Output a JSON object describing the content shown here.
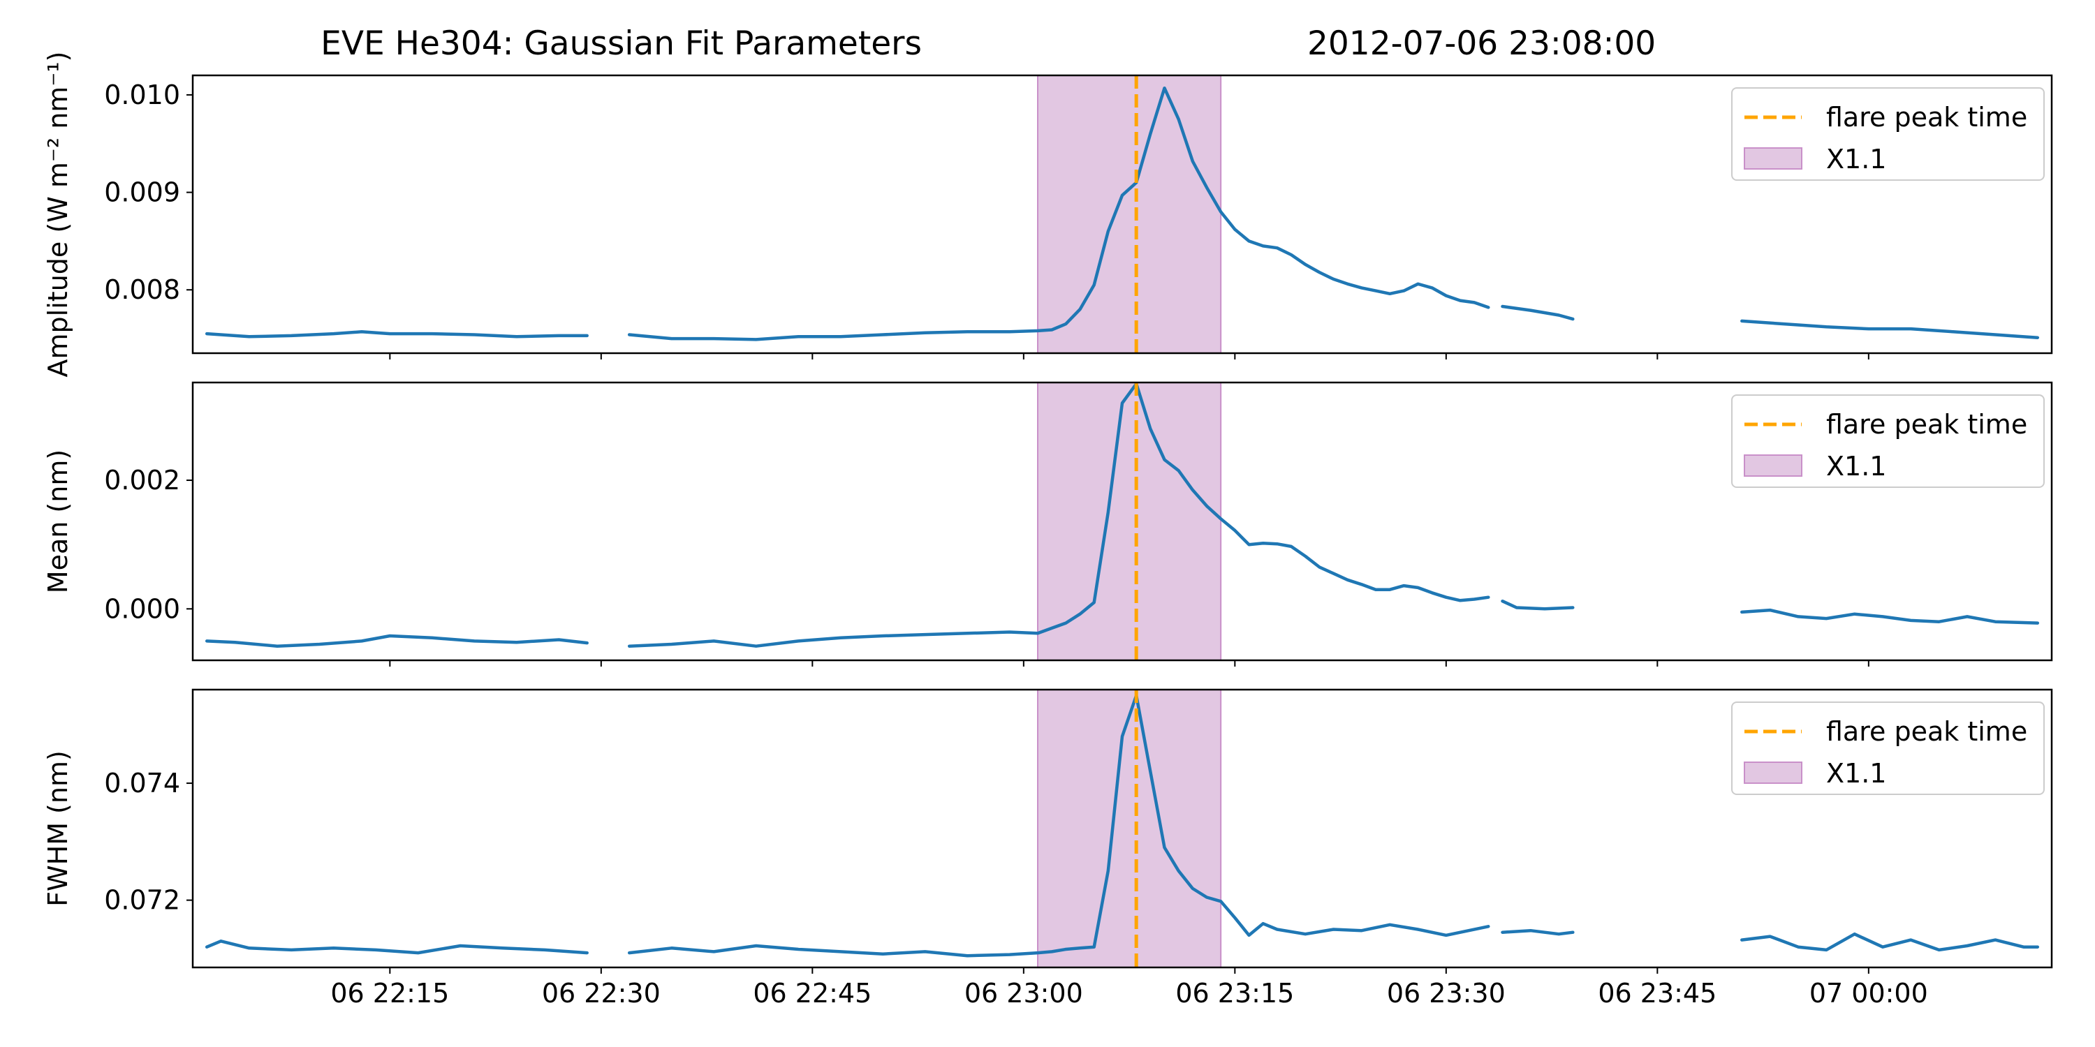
{
  "title": {
    "left": "EVE He304: Gaussian Fit Parameters",
    "right": "2012-07-06 23:08:00"
  },
  "colors": {
    "series": "#1f77b4",
    "flare_line": "#ffa500",
    "flare_span": "#e2c7e2",
    "flare_span_edge": "#c990c9",
    "axes": "#000000",
    "legend_border": "#cccccc"
  },
  "legend": {
    "peak_label": "flare peak time",
    "span_label": "X1.1",
    "placement": "top-right"
  },
  "x_ticks": [
    "06 22:15",
    "06 22:30",
    "06 22:45",
    "06 23:00",
    "06 23:15",
    "06 23:30",
    "06 23:45",
    "07 00:00"
  ],
  "chart_data": [
    {
      "type": "line",
      "ylabel": "Amplitude (W m⁻² nm⁻¹)",
      "xlim": [
        "2012-07-06 22:01",
        "2012-07-07 00:13"
      ],
      "ylim": [
        0.00735,
        0.0102
      ],
      "yticks": [
        {
          "value": 0.008,
          "label": "0.008"
        },
        {
          "value": 0.009,
          "label": "0.009"
        },
        {
          "value": 0.01,
          "label": "0.010"
        }
      ],
      "flare_peak_time": "2012-07-06 23:08",
      "flare_span": {
        "start": "2012-07-06 23:01",
        "end": "2012-07-06 23:14",
        "label": "X1.1"
      },
      "series": [
        {
          "segments": [
            [
              [
                "22:02",
                0.00755
              ],
              [
                "22:05",
                0.00752
              ],
              [
                "22:08",
                0.00753
              ],
              [
                "22:11",
                0.00755
              ],
              [
                "22:13",
                0.00757
              ],
              [
                "22:15",
                0.00755
              ],
              [
                "22:18",
                0.00755
              ],
              [
                "22:21",
                0.00754
              ],
              [
                "22:24",
                0.00752
              ],
              [
                "22:27",
                0.00753
              ],
              [
                "22:29",
                0.00753
              ]
            ],
            [
              [
                "22:32",
                0.00754
              ],
              [
                "22:35",
                0.0075
              ],
              [
                "22:38",
                0.0075
              ],
              [
                "22:41",
                0.00749
              ],
              [
                "22:44",
                0.00752
              ],
              [
                "22:47",
                0.00752
              ],
              [
                "22:50",
                0.00754
              ],
              [
                "22:53",
                0.00756
              ],
              [
                "22:56",
                0.00757
              ],
              [
                "22:59",
                0.00757
              ],
              [
                "23:01",
                0.00758
              ],
              [
                "23:02",
                0.00759
              ],
              [
                "23:03",
                0.00765
              ],
              [
                "23:04",
                0.0078
              ],
              [
                "23:05",
                0.00805
              ],
              [
                "23:06",
                0.0086
              ],
              [
                "23:07",
                0.00897
              ],
              [
                "23:08",
                0.0091
              ],
              [
                "23:09",
                0.0096
              ],
              [
                "23:10",
                0.01007
              ],
              [
                "23:11",
                0.00975
              ],
              [
                "23:12",
                0.00932
              ],
              [
                "23:13",
                0.00905
              ],
              [
                "23:14",
                0.0088
              ],
              [
                "23:15",
                0.00862
              ],
              [
                "23:16",
                0.0085
              ],
              [
                "23:17",
                0.00845
              ],
              [
                "23:18",
                0.00843
              ],
              [
                "23:19",
                0.00836
              ],
              [
                "23:20",
                0.00826
              ],
              [
                "23:21",
                0.00818
              ],
              [
                "23:22",
                0.00811
              ],
              [
                "23:23",
                0.00806
              ],
              [
                "23:24",
                0.00802
              ],
              [
                "23:25",
                0.00799
              ],
              [
                "23:26",
                0.00796
              ],
              [
                "23:27",
                0.00799
              ],
              [
                "23:28",
                0.00806
              ],
              [
                "23:29",
                0.00802
              ],
              [
                "23:30",
                0.00794
              ],
              [
                "23:31",
                0.00789
              ],
              [
                "23:32",
                0.00787
              ],
              [
                "23:33",
                0.00782
              ]
            ],
            [
              [
                "23:34",
                0.00783
              ],
              [
                "23:36",
                0.00779
              ],
              [
                "23:38",
                0.00774
              ],
              [
                "23:39",
                0.0077
              ]
            ],
            [
              [
                "23:51",
                0.00768
              ],
              [
                "23:54",
                0.00765
              ],
              [
                "23:57",
                0.00762
              ],
              [
                "00:00",
                0.0076
              ],
              [
                "00:03",
                0.0076
              ],
              [
                "00:06",
                0.00757
              ],
              [
                "00:09",
                0.00754
              ],
              [
                "00:12",
                0.00751
              ]
            ]
          ]
        }
      ]
    },
    {
      "type": "line",
      "ylabel": "Mean (nm)",
      "xlim": [
        "2012-07-06 22:01",
        "2012-07-07 00:13"
      ],
      "ylim": [
        -0.0008,
        0.00352
      ],
      "yticks": [
        {
          "value": 0.0,
          "label": "0.000"
        },
        {
          "value": 0.002,
          "label": "0.002"
        }
      ],
      "flare_peak_time": "2012-07-06 23:08",
      "flare_span": {
        "start": "2012-07-06 23:01",
        "end": "2012-07-06 23:14",
        "label": "X1.1"
      },
      "series": [
        {
          "segments": [
            [
              [
                "22:02",
                -0.0005
              ],
              [
                "22:04",
                -0.00052
              ],
              [
                "22:07",
                -0.00058
              ],
              [
                "22:10",
                -0.00055
              ],
              [
                "22:13",
                -0.0005
              ],
              [
                "22:15",
                -0.00042
              ],
              [
                "22:18",
                -0.00045
              ],
              [
                "22:21",
                -0.0005
              ],
              [
                "22:24",
                -0.00052
              ],
              [
                "22:27",
                -0.00048
              ],
              [
                "22:29",
                -0.00053
              ]
            ],
            [
              [
                "22:32",
                -0.00058
              ],
              [
                "22:35",
                -0.00055
              ],
              [
                "22:38",
                -0.0005
              ],
              [
                "22:41",
                -0.00058
              ],
              [
                "22:44",
                -0.0005
              ],
              [
                "22:47",
                -0.00045
              ],
              [
                "22:50",
                -0.00042
              ],
              [
                "22:53",
                -0.0004
              ],
              [
                "22:56",
                -0.00038
              ],
              [
                "22:59",
                -0.00036
              ],
              [
                "23:01",
                -0.00038
              ],
              [
                "23:02",
                -0.0003
              ],
              [
                "23:03",
                -0.00022
              ],
              [
                "23:04",
                -8e-05
              ],
              [
                "23:05",
                0.0001
              ],
              [
                "23:06",
                0.0015
              ],
              [
                "23:07",
                0.0032
              ],
              [
                "23:08",
                0.0035
              ],
              [
                "23:09",
                0.0028
              ],
              [
                "23:10",
                0.00232
              ],
              [
                "23:11",
                0.00215
              ],
              [
                "23:12",
                0.00185
              ],
              [
                "23:13",
                0.0016
              ],
              [
                "23:14",
                0.0014
              ],
              [
                "23:15",
                0.00122
              ],
              [
                "23:16",
                0.001
              ],
              [
                "23:17",
                0.00102
              ],
              [
                "23:18",
                0.00101
              ],
              [
                "23:19",
                0.00097
              ],
              [
                "23:20",
                0.00082
              ],
              [
                "23:21",
                0.00065
              ],
              [
                "23:22",
                0.00055
              ],
              [
                "23:23",
                0.00045
              ],
              [
                "23:24",
                0.00038
              ],
              [
                "23:25",
                0.0003
              ],
              [
                "23:26",
                0.0003
              ],
              [
                "23:27",
                0.00036
              ],
              [
                "23:28",
                0.00033
              ],
              [
                "23:29",
                0.00025
              ],
              [
                "23:30",
                0.00018
              ],
              [
                "23:31",
                0.00013
              ],
              [
                "23:32",
                0.00015
              ],
              [
                "23:33",
                0.00018
              ]
            ],
            [
              [
                "23:34",
                0.00012
              ],
              [
                "23:35",
                2e-05
              ],
              [
                "23:37",
                0.0
              ],
              [
                "23:39",
                2e-05
              ]
            ],
            [
              [
                "23:51",
                -5e-05
              ],
              [
                "23:53",
                -2e-05
              ],
              [
                "23:55",
                -0.00012
              ],
              [
                "23:57",
                -0.00015
              ],
              [
                "23:59",
                -8e-05
              ],
              [
                "00:01",
                -0.00012
              ],
              [
                "00:03",
                -0.00018
              ],
              [
                "00:05",
                -0.0002
              ],
              [
                "00:07",
                -0.00012
              ],
              [
                "00:09",
                -0.0002
              ],
              [
                "00:12",
                -0.00022
              ]
            ]
          ]
        }
      ]
    },
    {
      "type": "line",
      "ylabel": "FWHM (nm)",
      "xlim": [
        "2012-07-06 22:01",
        "2012-07-07 00:13"
      ],
      "ylim": [
        0.07085,
        0.0756
      ],
      "yticks": [
        {
          "value": 0.072,
          "label": "0.072"
        },
        {
          "value": 0.074,
          "label": "0.074"
        }
      ],
      "flare_peak_time": "2012-07-06 23:08",
      "flare_span": {
        "start": "2012-07-06 23:01",
        "end": "2012-07-06 23:14",
        "label": "X1.1"
      },
      "series": [
        {
          "segments": [
            [
              [
                "22:02",
                0.0712
              ],
              [
                "22:03",
                0.0713
              ],
              [
                "22:05",
                0.07118
              ],
              [
                "22:08",
                0.07115
              ],
              [
                "22:11",
                0.07118
              ],
              [
                "22:14",
                0.07115
              ],
              [
                "22:17",
                0.0711
              ],
              [
                "22:20",
                0.07122
              ],
              [
                "22:23",
                0.07118
              ],
              [
                "22:26",
                0.07115
              ],
              [
                "22:29",
                0.0711
              ]
            ],
            [
              [
                "22:32",
                0.0711
              ],
              [
                "22:35",
                0.07118
              ],
              [
                "22:38",
                0.07112
              ],
              [
                "22:41",
                0.07122
              ],
              [
                "22:44",
                0.07116
              ],
              [
                "22:47",
                0.07112
              ],
              [
                "22:50",
                0.07108
              ],
              [
                "22:53",
                0.07112
              ],
              [
                "22:56",
                0.07105
              ],
              [
                "22:59",
                0.07107
              ],
              [
                "23:01",
                0.0711
              ],
              [
                "23:02",
                0.07112
              ],
              [
                "23:03",
                0.07116
              ],
              [
                "23:04",
                0.07118
              ],
              [
                "23:05",
                0.0712
              ],
              [
                "23:06",
                0.0725
              ],
              [
                "23:07",
                0.0748
              ],
              [
                "23:08",
                0.0755
              ],
              [
                "23:09",
                0.0742
              ],
              [
                "23:10",
                0.0729
              ],
              [
                "23:11",
                0.0725
              ],
              [
                "23:12",
                0.0722
              ],
              [
                "23:13",
                0.07205
              ],
              [
                "23:14",
                0.07198
              ],
              [
                "23:15",
                0.0717
              ],
              [
                "23:16",
                0.0714
              ],
              [
                "23:17",
                0.0716
              ],
              [
                "23:18",
                0.0715
              ],
              [
                "23:20",
                0.07142
              ],
              [
                "23:22",
                0.0715
              ],
              [
                "23:24",
                0.07148
              ],
              [
                "23:26",
                0.07158
              ],
              [
                "23:28",
                0.0715
              ],
              [
                "23:30",
                0.0714
              ],
              [
                "23:33",
                0.07155
              ]
            ],
            [
              [
                "23:34",
                0.07145
              ],
              [
                "23:36",
                0.07148
              ],
              [
                "23:38",
                0.07142
              ],
              [
                "23:39",
                0.07145
              ]
            ],
            [
              [
                "23:51",
                0.07132
              ],
              [
                "23:53",
                0.07138
              ],
              [
                "23:55",
                0.0712
              ],
              [
                "23:57",
                0.07115
              ],
              [
                "23:59",
                0.07142
              ],
              [
                "00:01",
                0.0712
              ],
              [
                "00:03",
                0.07132
              ],
              [
                "00:05",
                0.07115
              ],
              [
                "00:07",
                0.07122
              ],
              [
                "00:09",
                0.07132
              ],
              [
                "00:11",
                0.0712
              ],
              [
                "00:12",
                0.0712
              ]
            ]
          ]
        }
      ]
    }
  ]
}
